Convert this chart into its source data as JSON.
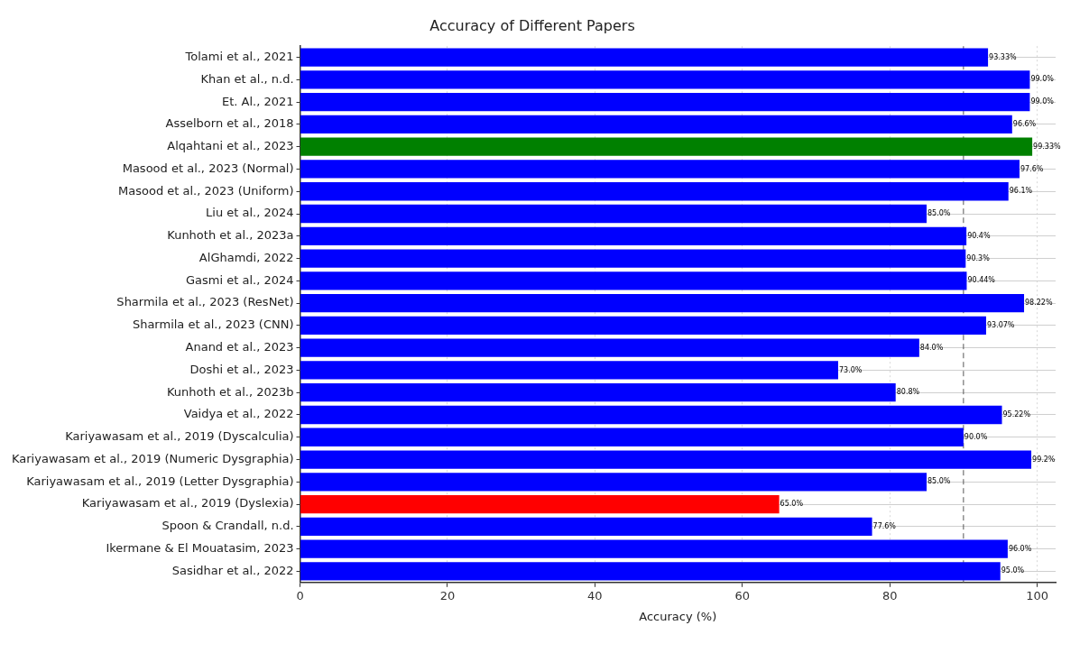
{
  "chart_data": {
    "type": "bar",
    "orientation": "horizontal",
    "title": "Accuracy of Different Papers",
    "xlabel": "Accuracy (%)",
    "categories": [
      "Tolami et al., 2021",
      "Khan et al., n.d.",
      "Et. Al., 2021",
      "Asselborn et al., 2018",
      "Alqahtani et al., 2023",
      "Masood et al., 2023 (Normal)",
      "Masood et al., 2023 (Uniform)",
      "Liu et al., 2024",
      "Kunhoth et al., 2023a",
      "AlGhamdi, 2022",
      "Gasmi et al., 2024",
      "Sharmila et al., 2023 (ResNet)",
      "Sharmila et al., 2023 (CNN)",
      "Anand et al., 2023",
      "Doshi et al., 2023",
      "Kunhoth et al., 2023b",
      "Vaidya et al., 2022",
      "Kariyawasam et al., 2019 (Dyscalculia)",
      "Kariyawasam et al., 2019 (Numeric Dysgraphia)",
      "Kariyawasam et al., 2019 (Letter Dysgraphia)",
      "Kariyawasam et al., 2019 (Dyslexia)",
      "Spoon & Crandall, n.d.",
      "Ikermane & El Mouatasim, 2023",
      "Sasidhar et al., 2022"
    ],
    "values": [
      93.33,
      99.0,
      99.0,
      96.6,
      99.33,
      97.6,
      96.1,
      85.0,
      90.4,
      90.3,
      90.44,
      98.22,
      93.07,
      84.0,
      73.0,
      80.8,
      95.22,
      90.0,
      99.2,
      85.0,
      65.0,
      77.6,
      96.0,
      95.0
    ],
    "value_labels": [
      "93.33%",
      "99.0%",
      "99.0%",
      "96.6%",
      "99.33%",
      "97.6%",
      "96.1%",
      "85.0%",
      "90.4%",
      "90.3%",
      "90.44%",
      "98.22%",
      "93.07%",
      "84.0%",
      "73.0%",
      "80.8%",
      "95.22%",
      "90.0%",
      "99.2%",
      "85.0%",
      "65.0%",
      "77.6%",
      "96.0%",
      "95.0%"
    ],
    "colors": [
      "#0000ff",
      "#0000ff",
      "#0000ff",
      "#0000ff",
      "#008000",
      "#0000ff",
      "#0000ff",
      "#0000ff",
      "#0000ff",
      "#0000ff",
      "#0000ff",
      "#0000ff",
      "#0000ff",
      "#0000ff",
      "#0000ff",
      "#0000ff",
      "#0000ff",
      "#0000ff",
      "#0000ff",
      "#0000ff",
      "#ff0000",
      "#0000ff",
      "#0000ff",
      "#0000ff"
    ],
    "xlim": [
      0,
      102.5
    ],
    "xticks": [
      0,
      20,
      40,
      60,
      80,
      100
    ],
    "ref_lines": [
      {
        "axis": "x",
        "value": 90,
        "color": "#555555",
        "line_style": "dashed"
      }
    ],
    "grid": true,
    "legend": false
  }
}
